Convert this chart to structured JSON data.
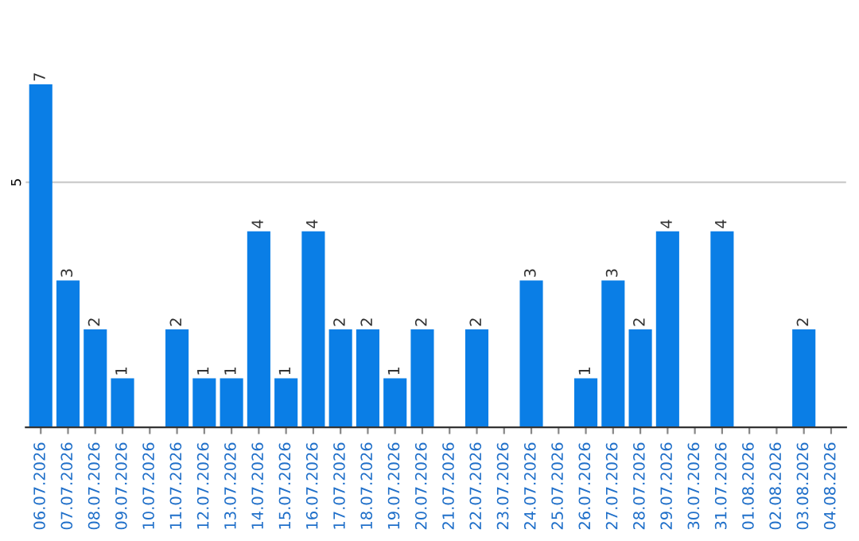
{
  "chart_data": {
    "type": "bar",
    "categories": [
      "06.07.2026",
      "07.07.2026",
      "08.07.2026",
      "09.07.2026",
      "10.07.2026",
      "11.07.2026",
      "12.07.2026",
      "13.07.2026",
      "14.07.2026",
      "15.07.2026",
      "16.07.2026",
      "17.07.2026",
      "18.07.2026",
      "19.07.2026",
      "20.07.2026",
      "21.07.2026",
      "22.07.2026",
      "23.07.2026",
      "24.07.2026",
      "25.07.2026",
      "26.07.2026",
      "27.07.2026",
      "28.07.2026",
      "29.07.2026",
      "30.07.2026",
      "31.07.2026",
      "01.08.2026",
      "02.08.2026",
      "03.08.2026",
      "04.08.2026"
    ],
    "values": [
      7,
      3,
      2,
      1,
      0,
      2,
      1,
      1,
      4,
      1,
      4,
      2,
      2,
      1,
      2,
      0,
      2,
      0,
      3,
      0,
      1,
      3,
      2,
      4,
      0,
      4,
      0,
      0,
      2,
      0
    ],
    "value_labels": [
      "7",
      "3",
      "2",
      "1",
      null,
      "2",
      "1",
      "1",
      "4",
      "1",
      "4",
      "2",
      "2",
      "1",
      "2",
      null,
      "2",
      null,
      "3",
      null,
      "1",
      "3",
      "2",
      "4",
      null,
      "4",
      null,
      null,
      "2",
      null
    ],
    "color": "#0a7ee6",
    "ref_lines": [
      {
        "axis": "y",
        "value": 5,
        "label": "5",
        "color": "#cccccc"
      }
    ]
  }
}
